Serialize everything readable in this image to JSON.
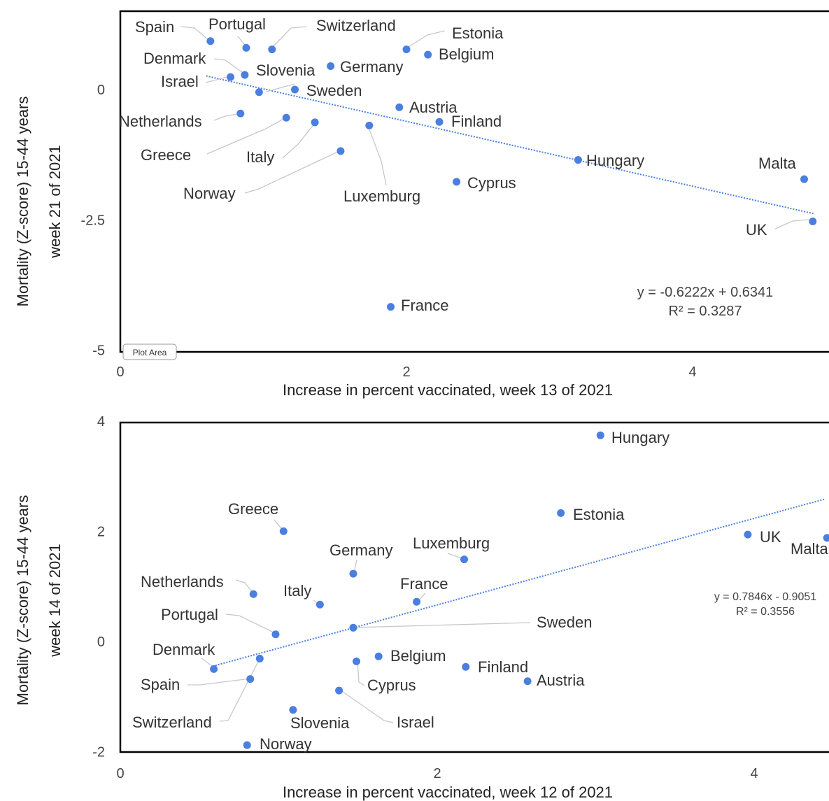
{
  "plot_area_tag": "Plot Area",
  "chart_data": [
    {
      "type": "scatter",
      "xlabel": "Increase in percent vaccinated, week 13 of 2021",
      "ylabel_line1": "Mortality (Z-score) 15-44 years",
      "ylabel_line2": "week 21 of 2021",
      "xlim": [
        0,
        5
      ],
      "ylim": [
        -5,
        1.5
      ],
      "x_ticks": [
        0,
        2,
        4
      ],
      "x_tick_labels": [
        "0",
        "2",
        "4"
      ],
      "y_ticks": [
        0,
        -2.5,
        -5
      ],
      "y_tick_labels": [
        "0",
        "-2.5",
        "-5"
      ],
      "series_color": "#4a7fe0",
      "trendline": {
        "slope": -0.6222,
        "intercept": 0.6341,
        "x_range": [
          0.6,
          4.85
        ]
      },
      "equation": "y = -0.6222x + 0.6341",
      "r_squared": "R² = 0.3287",
      "points": [
        {
          "name": "Spain",
          "x": 0.63,
          "y": 0.93
        },
        {
          "name": "Portugal",
          "x": 0.88,
          "y": 0.8
        },
        {
          "name": "Switzerland",
          "x": 1.06,
          "y": 0.77
        },
        {
          "name": "Estonia",
          "x": 2.0,
          "y": 0.77
        },
        {
          "name": "Belgium",
          "x": 2.15,
          "y": 0.67
        },
        {
          "name": "Denmark",
          "x": 0.87,
          "y": 0.28
        },
        {
          "name": "Slovenia",
          "x": 1.47,
          "y": 0.45
        },
        {
          "name": "Israel",
          "x": 0.77,
          "y": 0.24
        },
        {
          "name": "Germany",
          "x": 0.97,
          "y": -0.05
        },
        {
          "name": "Sweden",
          "x": 1.22,
          "y": 0.0
        },
        {
          "name": "Austria",
          "x": 1.95,
          "y": -0.34
        },
        {
          "name": "Finland",
          "x": 2.23,
          "y": -0.62
        },
        {
          "name": "Netherlands",
          "x": 0.84,
          "y": -0.46
        },
        {
          "name": "Greece",
          "x": 1.16,
          "y": -0.54
        },
        {
          "name": "Italy",
          "x": 1.36,
          "y": -0.63
        },
        {
          "name": "Luxemburg",
          "x": 1.74,
          "y": -0.69
        },
        {
          "name": "Norway",
          "x": 1.54,
          "y": -1.18
        },
        {
          "name": "Hungary",
          "x": 3.2,
          "y": -1.35
        },
        {
          "name": "Cyprus",
          "x": 2.35,
          "y": -1.77
        },
        {
          "name": "Malta",
          "x": 4.78,
          "y": -1.72
        },
        {
          "name": "UK",
          "x": 4.84,
          "y": -2.53
        },
        {
          "name": "France",
          "x": 1.89,
          "y": -4.17
        }
      ]
    },
    {
      "type": "scatter",
      "xlabel": "Increase in percent vaccinated, week 12 of 2021",
      "ylabel_line1": "Mortality (Z-score) 15-44 years",
      "ylabel_line2": "week 14 of 2021",
      "xlim": [
        0,
        4.5
      ],
      "ylim": [
        -2,
        4
      ],
      "x_ticks": [
        0,
        2,
        4
      ],
      "x_tick_labels": [
        "0",
        "2",
        "4"
      ],
      "y_ticks": [
        4,
        2,
        0,
        -2
      ],
      "y_tick_labels": [
        "4",
        "2",
        "0",
        "-2"
      ],
      "series_color": "#4a7fe0",
      "trendline": {
        "slope": 0.7846,
        "intercept": -0.9051,
        "x_range": [
          0.6,
          4.45
        ]
      },
      "equation": "y = 0.7846x - 0.9051",
      "r_squared": "R² = 0.3556",
      "points": [
        {
          "name": "Hungary",
          "x": 3.03,
          "y": 3.74
        },
        {
          "name": "Estonia",
          "x": 2.78,
          "y": 2.33
        },
        {
          "name": "Greece",
          "x": 1.03,
          "y": 2.0
        },
        {
          "name": "UK",
          "x": 3.96,
          "y": 1.94
        },
        {
          "name": "Malta",
          "x": 4.46,
          "y": 1.88
        },
        {
          "name": "Luxemburg",
          "x": 2.17,
          "y": 1.49
        },
        {
          "name": "Germany",
          "x": 1.47,
          "y": 1.23
        },
        {
          "name": "Netherlands",
          "x": 0.84,
          "y": 0.86
        },
        {
          "name": "France",
          "x": 1.87,
          "y": 0.72
        },
        {
          "name": "Italy",
          "x": 1.26,
          "y": 0.67
        },
        {
          "name": "Portugal",
          "x": 0.98,
          "y": 0.13
        },
        {
          "name": "Sweden",
          "x": 1.47,
          "y": 0.25
        },
        {
          "name": "Denmark",
          "x": 0.88,
          "y": -0.31
        },
        {
          "name": "Belgium",
          "x": 1.63,
          "y": -0.27
        },
        {
          "name": "Cyprus",
          "x": 1.49,
          "y": -0.36
        },
        {
          "name": "Finland",
          "x": 2.18,
          "y": -0.46
        },
        {
          "name": "Austria",
          "x": 2.57,
          "y": -0.72
        },
        {
          "name": "Spain",
          "x": 0.59,
          "y": -0.5
        },
        {
          "name": "Switzerland",
          "x": 0.82,
          "y": -0.68
        },
        {
          "name": "Slovenia",
          "x": 1.09,
          "y": -1.24
        },
        {
          "name": "Israel",
          "x": 1.38,
          "y": -0.89
        },
        {
          "name": "Norway",
          "x": 0.8,
          "y": -1.88
        }
      ]
    }
  ]
}
